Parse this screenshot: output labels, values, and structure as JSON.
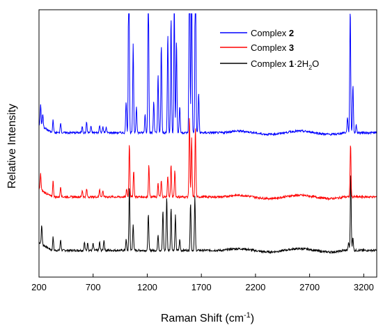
{
  "chart_data": {
    "type": "line",
    "xlabel": "Raman Shift (cm",
    "xlabel_sup": "-1",
    "xlabel_close": ")",
    "ylabel": "Relative Intensity",
    "xlim": [
      200,
      3320
    ],
    "x_ticks": [
      200,
      700,
      1200,
      1700,
      2200,
      2700,
      3200
    ],
    "y_ticks_shown": false,
    "legend_position": "top-right",
    "series": [
      {
        "name_prefix": "Complex ",
        "name_bold": "2",
        "color": "#0000ff",
        "baseline": 0.54,
        "peaks": [
          [
            215,
            0.08
          ],
          [
            235,
            0.05
          ],
          [
            330,
            0.05
          ],
          [
            400,
            0.04
          ],
          [
            600,
            0.025
          ],
          [
            640,
            0.04
          ],
          [
            680,
            0.025
          ],
          [
            760,
            0.03
          ],
          [
            790,
            0.025
          ],
          [
            820,
            0.02
          ],
          [
            1005,
            0.12
          ],
          [
            1030,
            0.8
          ],
          [
            1070,
            0.33
          ],
          [
            1100,
            0.1
          ],
          [
            1180,
            0.07
          ],
          [
            1210,
            0.62
          ],
          [
            1260,
            0.12
          ],
          [
            1300,
            0.22
          ],
          [
            1330,
            0.33
          ],
          [
            1390,
            0.37
          ],
          [
            1420,
            0.43
          ],
          [
            1450,
            0.5
          ],
          [
            1470,
            0.35
          ],
          [
            1500,
            0.1
          ],
          [
            1590,
            0.93
          ],
          [
            1610,
            0.7
          ],
          [
            1645,
            0.79
          ],
          [
            1675,
            0.15
          ],
          [
            3050,
            0.06
          ],
          [
            3075,
            0.48
          ],
          [
            3100,
            0.18
          ],
          [
            3130,
            0.03
          ]
        ]
      },
      {
        "name_prefix": "Complex ",
        "name_bold": "3",
        "color": "#ff0000",
        "baseline": 0.3,
        "peaks": [
          [
            215,
            0.06
          ],
          [
            330,
            0.06
          ],
          [
            400,
            0.04
          ],
          [
            600,
            0.025
          ],
          [
            640,
            0.03
          ],
          [
            760,
            0.03
          ],
          [
            790,
            0.025
          ],
          [
            1010,
            0.03
          ],
          [
            1035,
            0.2
          ],
          [
            1075,
            0.1
          ],
          [
            1215,
            0.12
          ],
          [
            1300,
            0.05
          ],
          [
            1330,
            0.06
          ],
          [
            1390,
            0.08
          ],
          [
            1420,
            0.12
          ],
          [
            1455,
            0.1
          ],
          [
            1590,
            0.3
          ],
          [
            1610,
            0.22
          ],
          [
            1645,
            0.26
          ],
          [
            3078,
            0.2
          ]
        ]
      },
      {
        "name_prefix": "Complex ",
        "name_bold": "1",
        "name_suffix": "·2H",
        "name_sub": "2",
        "name_tail": "O",
        "color": "#000000",
        "baseline": 0.1,
        "peaks": [
          [
            225,
            0.07
          ],
          [
            330,
            0.05
          ],
          [
            400,
            0.04
          ],
          [
            620,
            0.03
          ],
          [
            650,
            0.03
          ],
          [
            700,
            0.025
          ],
          [
            760,
            0.03
          ],
          [
            800,
            0.04
          ],
          [
            1005,
            0.04
          ],
          [
            1035,
            0.24
          ],
          [
            1070,
            0.1
          ],
          [
            1210,
            0.14
          ],
          [
            1300,
            0.06
          ],
          [
            1345,
            0.15
          ],
          [
            1380,
            0.2
          ],
          [
            1420,
            0.16
          ],
          [
            1460,
            0.13
          ],
          [
            1500,
            0.04
          ],
          [
            1600,
            0.18
          ],
          [
            1640,
            0.2
          ],
          [
            3060,
            0.03
          ],
          [
            3080,
            0.28
          ],
          [
            3100,
            0.05
          ]
        ]
      }
    ]
  }
}
